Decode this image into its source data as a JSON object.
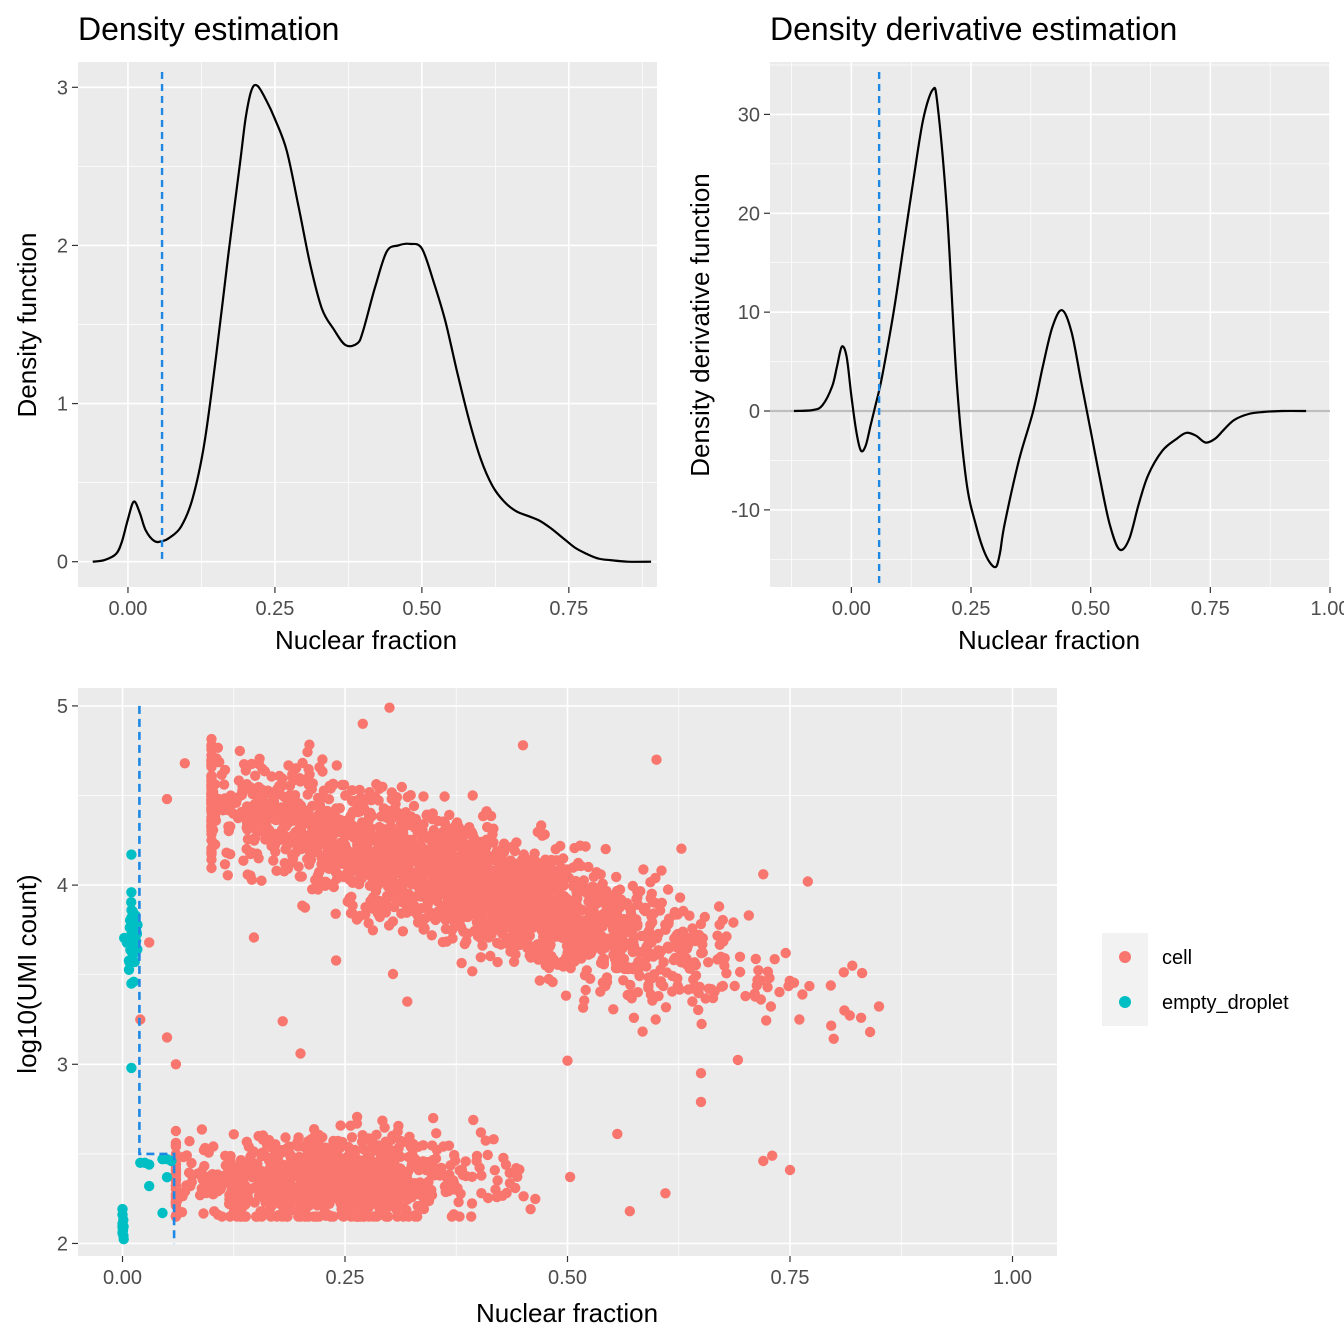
{
  "chart_data": [
    {
      "type": "line",
      "title": "Density estimation",
      "xlabel": "Nuclear fraction",
      "ylabel": "Density function",
      "xlim": [
        -0.085,
        0.9
      ],
      "ylim": [
        -0.16,
        3.16
      ],
      "x_ticks": [
        0.0,
        0.25,
        0.5,
        0.75
      ],
      "x_tick_labels": [
        "0.00",
        "0.25",
        "0.50",
        "0.75"
      ],
      "y_ticks": [
        0,
        1,
        2,
        3
      ],
      "y_tick_labels": [
        "0",
        "1",
        "2",
        "3"
      ],
      "threshold_x": 0.058,
      "threshold_color": "#1E88E5",
      "line_color": "#000000",
      "grid": true,
      "series": [
        {
          "x": [
            -0.06,
            -0.04,
            -0.02,
            -0.01,
            0.0,
            0.01,
            0.02,
            0.03,
            0.045,
            0.058,
            0.07,
            0.09,
            0.11,
            0.13,
            0.15,
            0.17,
            0.19,
            0.2,
            0.21,
            0.22,
            0.235,
            0.25,
            0.27,
            0.29,
            0.31,
            0.33,
            0.35,
            0.37,
            0.39,
            0.4,
            0.42,
            0.44,
            0.46,
            0.48,
            0.5,
            0.52,
            0.54,
            0.56,
            0.58,
            0.6,
            0.62,
            0.64,
            0.66,
            0.68,
            0.7,
            0.72,
            0.74,
            0.76,
            0.78,
            0.8,
            0.82,
            0.85,
            0.89
          ],
          "y": [
            0.0,
            0.01,
            0.05,
            0.13,
            0.27,
            0.38,
            0.31,
            0.2,
            0.13,
            0.13,
            0.15,
            0.22,
            0.4,
            0.75,
            1.3,
            1.92,
            2.5,
            2.8,
            2.98,
            3.01,
            2.92,
            2.8,
            2.6,
            2.25,
            1.88,
            1.6,
            1.47,
            1.37,
            1.38,
            1.46,
            1.73,
            1.96,
            2.0,
            2.01,
            1.98,
            1.77,
            1.52,
            1.2,
            0.9,
            0.65,
            0.48,
            0.38,
            0.32,
            0.29,
            0.26,
            0.21,
            0.15,
            0.09,
            0.05,
            0.02,
            0.01,
            0.0,
            0.0
          ]
        }
      ]
    },
    {
      "type": "line",
      "title": "Density derivative estimation",
      "xlabel": "Nuclear fraction",
      "ylabel": "Density derivative function",
      "xlim": [
        -0.17,
        1.0
      ],
      "ylim": [
        -17.8,
        35.3
      ],
      "x_ticks": [
        0.0,
        0.25,
        0.5,
        0.75,
        1.0
      ],
      "x_tick_labels": [
        "0.00",
        "0.25",
        "0.50",
        "0.75",
        "1.00"
      ],
      "y_ticks": [
        -10,
        0,
        10,
        20,
        30
      ],
      "y_tick_labels": [
        "-10",
        "0",
        "10",
        "20",
        "30"
      ],
      "threshold_x": 0.058,
      "threshold_color": "#1E88E5",
      "zero_line_color": "#BEBEBE",
      "line_color": "#000000",
      "grid": true,
      "series": [
        {
          "x": [
            -0.12,
            -0.08,
            -0.06,
            -0.04,
            -0.03,
            -0.02,
            -0.01,
            0.0,
            0.01,
            0.02,
            0.03,
            0.04,
            0.05,
            0.06,
            0.07,
            0.09,
            0.11,
            0.13,
            0.15,
            0.17,
            0.18,
            0.2,
            0.22,
            0.24,
            0.26,
            0.28,
            0.3,
            0.31,
            0.32,
            0.35,
            0.38,
            0.4,
            0.42,
            0.44,
            0.46,
            0.48,
            0.5,
            0.52,
            0.54,
            0.56,
            0.58,
            0.6,
            0.62,
            0.65,
            0.68,
            0.7,
            0.72,
            0.74,
            0.76,
            0.78,
            0.8,
            0.83,
            0.86,
            0.9,
            0.95
          ],
          "y": [
            0.0,
            0.1,
            0.6,
            2.5,
            4.5,
            6.5,
            5.5,
            1.5,
            -2.0,
            -4.0,
            -3.5,
            -1.5,
            0.5,
            2.5,
            5.0,
            10.5,
            17.0,
            23.5,
            29.5,
            32.5,
            31.0,
            20.0,
            3.0,
            -7.0,
            -11.5,
            -14.5,
            -15.8,
            -14.5,
            -11.5,
            -5.0,
            0.0,
            4.5,
            8.5,
            10.2,
            8.0,
            3.0,
            -2.0,
            -7.0,
            -11.5,
            -14.0,
            -13.0,
            -9.5,
            -6.5,
            -4.0,
            -2.8,
            -2.2,
            -2.5,
            -3.2,
            -2.8,
            -1.8,
            -0.9,
            -0.3,
            -0.1,
            0.0,
            0.0
          ]
        }
      ]
    },
    {
      "type": "scatter",
      "title": "",
      "xlabel": "Nuclear fraction",
      "ylabel": "log10(UMI count)",
      "xlim": [
        -0.05,
        1.05
      ],
      "ylim": [
        1.93,
        5.1
      ],
      "x_ticks": [
        0.0,
        0.25,
        0.5,
        0.75,
        1.0
      ],
      "x_tick_labels": [
        "0.00",
        "0.25",
        "0.50",
        "0.75",
        "1.00"
      ],
      "y_ticks": [
        2,
        3,
        4,
        5
      ],
      "y_tick_labels": [
        "2",
        "3",
        "4",
        "5"
      ],
      "grid": true,
      "threshold_path": [
        [
          0.019,
          5.0
        ],
        [
          0.019,
          2.5
        ],
        [
          0.058,
          2.5
        ],
        [
          0.058,
          2.0
        ]
      ],
      "threshold_color": "#1E88E5",
      "legend_position": "right",
      "legend": [
        {
          "label": "cell",
          "color": "#F8766D"
        },
        {
          "label": "empty_droplet",
          "color": "#00BFC4"
        }
      ],
      "clusters": [
        {
          "series": "cell",
          "description": "upper population",
          "n": 2200,
          "x_mean": 0.38,
          "x_sd": 0.15,
          "x_min": 0.1,
          "x_max": 0.85,
          "y_at_x": [
            [
              0.1,
              4.5
            ],
            [
              0.85,
              3.25
            ]
          ],
          "y_sd": 0.17
        },
        {
          "series": "cell",
          "description": "lower population",
          "n": 950,
          "x_mean": 0.23,
          "x_sd": 0.09,
          "x_min": 0.06,
          "x_max": 0.62,
          "y_mean": 2.35,
          "y_sd": 0.12,
          "y_min": 2.15,
          "y_max": 2.72
        },
        {
          "series": "empty_droplet",
          "description": "upper strip",
          "n": 38,
          "x_mean": 0.011,
          "x_sd": 0.004,
          "y_mean": 3.72,
          "y_sd": 0.1
        },
        {
          "series": "empty_droplet",
          "description": "bottom strip",
          "n": 12,
          "x_mean": 0.0,
          "x_sd": 0.001,
          "y_mean": 2.08,
          "y_sd": 0.04
        }
      ],
      "points": [
        {
          "series": "cell",
          "x": 0.3,
          "y": 4.99
        },
        {
          "series": "cell",
          "x": 0.27,
          "y": 4.9
        },
        {
          "series": "cell",
          "x": 0.45,
          "y": 4.78
        },
        {
          "series": "cell",
          "x": 0.6,
          "y": 4.7
        },
        {
          "series": "cell",
          "x": 0.07,
          "y": 4.68
        },
        {
          "series": "cell",
          "x": 0.05,
          "y": 4.48
        },
        {
          "series": "cell",
          "x": 0.72,
          "y": 4.06
        },
        {
          "series": "cell",
          "x": 0.77,
          "y": 4.02
        },
        {
          "series": "cell",
          "x": 0.84,
          "y": 3.18
        },
        {
          "series": "cell",
          "x": 0.82,
          "y": 3.55
        },
        {
          "series": "cell",
          "x": 0.05,
          "y": 3.15
        },
        {
          "series": "cell",
          "x": 0.02,
          "y": 3.25
        },
        {
          "series": "cell",
          "x": 0.06,
          "y": 3.0
        },
        {
          "series": "cell",
          "x": 0.03,
          "y": 3.68
        },
        {
          "series": "cell",
          "x": 0.72,
          "y": 2.46
        },
        {
          "series": "cell",
          "x": 0.75,
          "y": 2.41
        },
        {
          "series": "cell",
          "x": 0.73,
          "y": 2.49
        },
        {
          "series": "cell",
          "x": 0.61,
          "y": 2.28
        },
        {
          "series": "cell",
          "x": 0.57,
          "y": 2.18
        },
        {
          "series": "cell",
          "x": 0.5,
          "y": 3.02
        },
        {
          "series": "cell",
          "x": 0.65,
          "y": 2.79
        },
        {
          "series": "cell",
          "x": 0.65,
          "y": 2.95
        },
        {
          "series": "cell",
          "x": 0.24,
          "y": 3.58
        },
        {
          "series": "cell",
          "x": 0.18,
          "y": 3.24
        },
        {
          "series": "cell",
          "x": 0.32,
          "y": 3.35
        },
        {
          "series": "cell",
          "x": 0.2,
          "y": 3.06
        },
        {
          "series": "empty_droplet",
          "x": 0.01,
          "y": 2.98
        },
        {
          "series": "empty_droplet",
          "x": 0.02,
          "y": 2.45
        },
        {
          "series": "empty_droplet",
          "x": 0.025,
          "y": 2.45
        },
        {
          "series": "empty_droplet",
          "x": 0.03,
          "y": 2.44
        },
        {
          "series": "empty_droplet",
          "x": 0.03,
          "y": 2.32
        },
        {
          "series": "empty_droplet",
          "x": 0.045,
          "y": 2.47
        },
        {
          "series": "empty_droplet",
          "x": 0.05,
          "y": 2.47
        },
        {
          "series": "empty_droplet",
          "x": 0.055,
          "y": 2.46
        },
        {
          "series": "empty_droplet",
          "x": 0.05,
          "y": 2.37
        },
        {
          "series": "empty_droplet",
          "x": 0.045,
          "y": 2.17
        },
        {
          "series": "empty_droplet",
          "x": 0.01,
          "y": 4.17
        },
        {
          "series": "empty_droplet",
          "x": 0.01,
          "y": 3.96
        },
        {
          "series": "empty_droplet",
          "x": 0.01,
          "y": 3.45
        }
      ]
    }
  ]
}
